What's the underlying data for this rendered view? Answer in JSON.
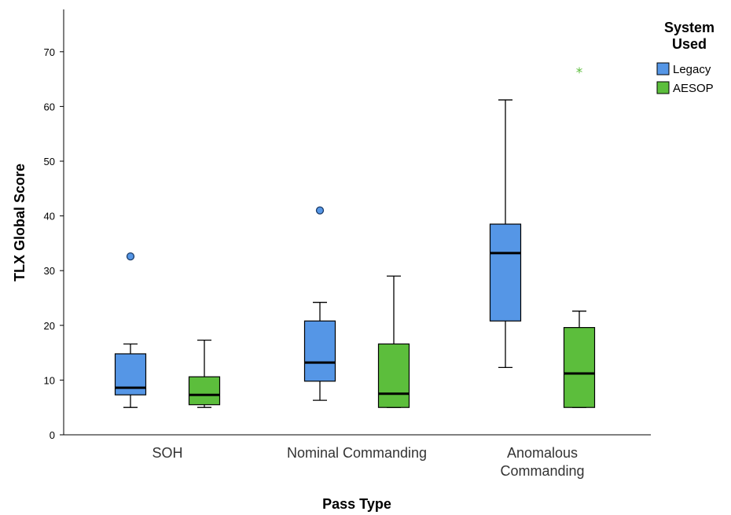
{
  "chart_data": {
    "type": "boxplot",
    "title": "",
    "xlabel": "Pass Type",
    "ylabel": "TLX Global Score",
    "ylim": [
      0,
      77
    ],
    "yticks": [
      0,
      10,
      20,
      30,
      40,
      50,
      60,
      70
    ],
    "grid": false,
    "legend_title": [
      "System",
      "Used"
    ],
    "legend_position": "top-right",
    "categories": [
      [
        "SOH"
      ],
      [
        "Nominal Commanding"
      ],
      [
        "Anomalous",
        "Commanding"
      ]
    ],
    "series": [
      {
        "name": "Legacy",
        "color": "#5596e6",
        "boxes": [
          {
            "min": 5,
            "q1": 7.3,
            "median": 8.6,
            "q3": 14.8,
            "max": 16.6,
            "outliers": [
              {
                "value": 32.6,
                "marker": "circle"
              }
            ]
          },
          {
            "min": 6.3,
            "q1": 9.8,
            "median": 13.2,
            "q3": 20.8,
            "max": 24.2,
            "outliers": [
              {
                "value": 41,
                "marker": "circle"
              }
            ]
          },
          {
            "min": 12.3,
            "q1": 20.8,
            "median": 33.2,
            "q3": 38.5,
            "max": 61.2,
            "outliers": []
          }
        ]
      },
      {
        "name": "AESOP",
        "color": "#5cbe3c",
        "boxes": [
          {
            "min": 5,
            "q1": 5.5,
            "median": 7.3,
            "q3": 10.6,
            "max": 17.3,
            "outliers": []
          },
          {
            "min": 5,
            "q1": 5,
            "median": 7.5,
            "q3": 16.6,
            "max": 29,
            "outliers": []
          },
          {
            "min": 5,
            "q1": 5,
            "median": 11.2,
            "q3": 19.6,
            "max": 22.6,
            "outliers": [
              {
                "value": 66.4,
                "marker": "star"
              }
            ]
          }
        ]
      }
    ]
  }
}
